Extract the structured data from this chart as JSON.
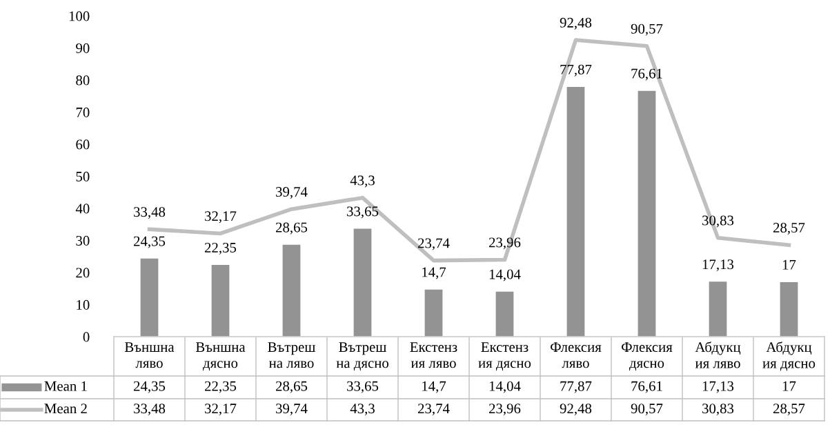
{
  "chart_data": {
    "type": "bar",
    "categories": [
      "Външна\nляво",
      "Външна\nдясно",
      "Вътреш\nна ляво",
      "Вътреш\nна дясно",
      "Екстенз\nия ляво",
      "Екстенз\nия дясно",
      "Флексия\nляво",
      "Флексия\nдясно",
      "Абдукц\nия ляво",
      "Абдукц\nия дясно"
    ],
    "series": [
      {
        "name": "Mean 1",
        "color": "#939393",
        "values": [
          24.35,
          22.35,
          28.65,
          33.65,
          14.7,
          14.04,
          77.87,
          76.61,
          17.13,
          17
        ],
        "value_labels": [
          "24,35",
          "22,35",
          "28,65",
          "33,65",
          "14,7",
          "14,04",
          "77,87",
          "76,61",
          "17,13",
          "17"
        ]
      },
      {
        "name": "Mean 2",
        "type": "line",
        "color": "#bfbfbf",
        "values": [
          33.48,
          32.17,
          39.74,
          43.3,
          23.74,
          23.96,
          92.48,
          90.57,
          30.83,
          28.57
        ],
        "value_labels": [
          "33,48",
          "32,17",
          "39,74",
          "43,3",
          "23,74",
          "23,96",
          "92,48",
          "90,57",
          "30,83",
          "28,57"
        ]
      }
    ],
    "ylim": [
      0,
      100
    ],
    "yticks": [
      0,
      10,
      20,
      30,
      40,
      50,
      60,
      70,
      80,
      90,
      100
    ],
    "grid": false,
    "legend": "bottom"
  }
}
